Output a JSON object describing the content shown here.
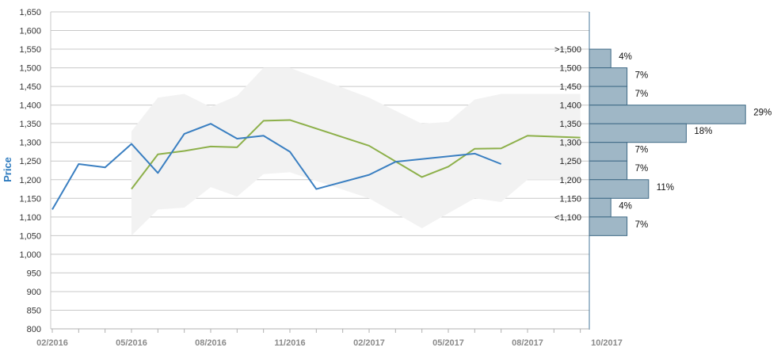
{
  "chart_data": {
    "type": "line",
    "ylabel": "Price",
    "ylim": [
      800,
      1650
    ],
    "yticks": [
      "800",
      "850",
      "900",
      "950",
      "1,000",
      "1,050",
      "1,100",
      "1,150",
      "1,200",
      "1,250",
      "1,300",
      "1,350",
      "1,400",
      "1,450",
      "1,500",
      "1,550",
      "1,600",
      "1,650"
    ],
    "xticks": [
      "02/2016",
      "05/2016",
      "08/2016",
      "11/2016",
      "02/2017",
      "05/2017",
      "08/2017",
      "10/2017"
    ],
    "grid": true,
    "colors": {
      "blue_series": "#3a7fc1",
      "green_series": "#8db04a",
      "range_band": "#f2f2f2",
      "histogram_bar": "#9fb7c6"
    },
    "blue_series": {
      "x": [
        "2016-02",
        "2016-03",
        "2016-04",
        "2016-05",
        "2016-06",
        "2016-07",
        "2016-08",
        "2016-09",
        "2016-10",
        "2016-11",
        "2016-12",
        "2017-02",
        "2017-03",
        "2017-06",
        "2017-07"
      ],
      "y": [
        1120,
        1242,
        1233,
        1296,
        1218,
        1323,
        1350,
        1310,
        1318,
        1275,
        1175,
        1213,
        1248,
        1270,
        1242
      ]
    },
    "green_series": {
      "x": [
        "2016-05",
        "2016-06",
        "2016-07",
        "2016-08",
        "2016-09",
        "2016-10",
        "2016-11",
        "2017-02",
        "2017-04",
        "2017-05",
        "2017-06",
        "2017-07",
        "2017-08",
        "2017-10"
      ],
      "y": [
        1175,
        1268,
        1277,
        1289,
        1287,
        1358,
        1360,
        1291,
        1207,
        1235,
        1283,
        1284,
        1318,
        1313
      ]
    },
    "range_band": {
      "x": [
        "2016-05",
        "2016-06",
        "2016-07",
        "2016-08",
        "2016-09",
        "2016-10",
        "2016-11",
        "2017-02",
        "2017-04",
        "2017-05",
        "2017-06",
        "2017-07",
        "2017-08",
        "2017-10"
      ],
      "high": [
        1330,
        1420,
        1430,
        1395,
        1425,
        1500,
        1500,
        1420,
        1350,
        1355,
        1415,
        1430,
        1430,
        1430
      ],
      "low": [
        1050,
        1120,
        1125,
        1180,
        1155,
        1215,
        1220,
        1150,
        1070,
        1110,
        1150,
        1140,
        1200,
        1200
      ]
    },
    "distribution": {
      "bins": [
        ">1,500",
        "1,500",
        "1,450",
        "1,400",
        "1,350",
        "1,300",
        "1,250",
        "1,200",
        "1,150",
        "<1,100"
      ],
      "percent_labels": [
        "4%",
        "7%",
        "7%",
        "29%",
        "18%",
        "7%",
        "7%",
        "11%",
        "4%",
        "7%"
      ],
      "values": [
        4,
        7,
        7,
        29,
        18,
        7,
        7,
        11,
        4,
        7
      ]
    }
  }
}
